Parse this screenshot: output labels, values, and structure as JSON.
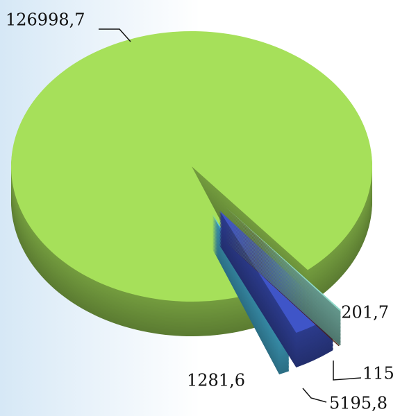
{
  "chart_data": {
    "type": "pie",
    "values": [
      126998.7,
      201.7,
      115,
      5195.8,
      1281.6
    ],
    "value_labels": [
      "126998,7",
      "201,7",
      "115",
      "5195,8",
      "1281,6"
    ],
    "colors": [
      "#a6e05a",
      "#8fd8c8",
      "#8b3a1a",
      "#3f55c8",
      "#4fc8f0"
    ]
  }
}
